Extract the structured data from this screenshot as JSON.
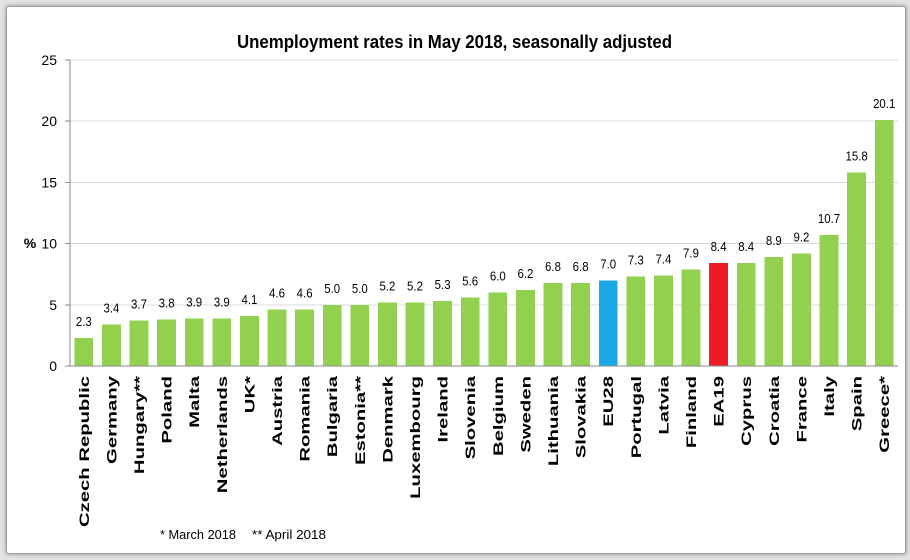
{
  "chart_data": {
    "type": "bar",
    "title": "Unemployment rates in May 2018, seasonally adjusted",
    "ylabel": "%",
    "ylim": [
      0,
      25
    ],
    "yticks": [
      0,
      5,
      10,
      15,
      20,
      25
    ],
    "grid": true,
    "categories": [
      "Czech Republic",
      "Germany",
      "Hungary**",
      "Poland",
      "Malta",
      "Netherlands",
      "UK*",
      "Austria",
      "Romania",
      "Bulgaria",
      "Estonia**",
      "Denmark",
      "Luxembourg",
      "Ireland",
      "Slovenia",
      "Belgium",
      "Sweden",
      "Lithuania",
      "Slovakia",
      "EU28",
      "Portugal",
      "Latvia",
      "Finland",
      "EA19",
      "Cyprus",
      "Croatia",
      "France",
      "Italy",
      "Spain",
      "Greece*"
    ],
    "values": [
      2.3,
      3.4,
      3.7,
      3.8,
      3.9,
      3.9,
      4.1,
      4.6,
      4.6,
      5.0,
      5.0,
      5.2,
      5.2,
      5.3,
      5.6,
      6.0,
      6.2,
      6.8,
      6.8,
      7.0,
      7.3,
      7.4,
      7.9,
      8.4,
      8.4,
      8.9,
      9.2,
      10.7,
      15.8,
      20.1
    ]
  },
  "colors": {
    "bar": "#92d050",
    "highlight": {
      "EU28": "#19a9e6",
      "EA19": "#ed1c24"
    }
  },
  "footnotes": [
    "* March 2018",
    "** April 2018"
  ]
}
